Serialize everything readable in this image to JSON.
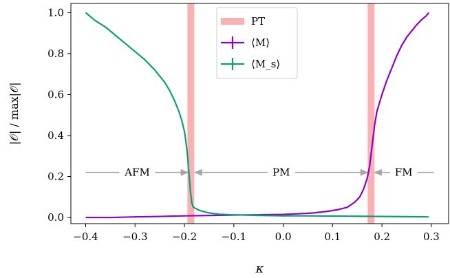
{
  "chart_data": {
    "type": "line",
    "xlabel": "κ",
    "ylabel": "|𝒪| / max|𝒪|",
    "xlim": [
      -0.43,
      0.335
    ],
    "ylim": [
      -0.03,
      1.045
    ],
    "xticks": [
      -0.4,
      -0.3,
      -0.2,
      -0.1,
      0.0,
      0.1,
      0.2,
      0.3
    ],
    "xtick_labels": [
      "−0.4",
      "−0.3",
      "−0.2",
      "−0.1",
      "0.0",
      "0.1",
      "0.2",
      "0.3"
    ],
    "yticks": [
      0.0,
      0.2,
      0.4,
      0.6,
      0.8,
      1.0
    ],
    "ytick_labels": [
      "0.0",
      "0.2",
      "0.4",
      "0.6",
      "0.8",
      "1.0"
    ],
    "grid": false,
    "legend_position": "top-center",
    "phase_transitions": {
      "name": "PT",
      "color": "#f9b1b1",
      "x": [
        -0.187,
        0.178
      ]
    },
    "series": [
      {
        "name": "⟨M⟩",
        "color": "#8f00cc",
        "x": [
          -0.4,
          -0.35,
          -0.3,
          -0.25,
          -0.2,
          -0.15,
          -0.1,
          -0.05,
          0.0,
          0.03,
          0.06,
          0.09,
          0.11,
          0.13,
          0.145,
          0.155,
          0.163,
          0.17,
          0.175,
          0.18,
          0.185,
          0.19,
          0.2,
          0.21,
          0.22,
          0.23,
          0.24,
          0.25,
          0.26,
          0.27,
          0.28,
          0.29,
          0.295
        ],
        "y": [
          0.0,
          0.0,
          0.003,
          0.005,
          0.008,
          0.01,
          0.012,
          0.013,
          0.015,
          0.018,
          0.022,
          0.03,
          0.038,
          0.05,
          0.075,
          0.1,
          0.14,
          0.19,
          0.25,
          0.35,
          0.45,
          0.52,
          0.6,
          0.67,
          0.73,
          0.79,
          0.84,
          0.88,
          0.91,
          0.94,
          0.965,
          0.985,
          1.0
        ]
      },
      {
        "name": "⟨M_s⟩",
        "color": "#0a9e73",
        "x": [
          -0.4,
          -0.38,
          -0.36,
          -0.34,
          -0.32,
          -0.3,
          -0.28,
          -0.26,
          -0.24,
          -0.23,
          -0.22,
          -0.21,
          -0.205,
          -0.2,
          -0.197,
          -0.194,
          -0.191,
          -0.188,
          -0.185,
          -0.182,
          -0.178,
          -0.17,
          -0.16,
          -0.15,
          -0.13,
          -0.1,
          -0.05,
          0.0,
          0.05,
          0.1,
          0.15,
          0.2,
          0.25,
          0.295
        ],
        "y": [
          1.0,
          0.96,
          0.93,
          0.89,
          0.85,
          0.81,
          0.77,
          0.72,
          0.66,
          0.62,
          0.57,
          0.51,
          0.47,
          0.42,
          0.37,
          0.31,
          0.22,
          0.13,
          0.07,
          0.05,
          0.045,
          0.035,
          0.028,
          0.022,
          0.016,
          0.013,
          0.01,
          0.008,
          0.008,
          0.007,
          0.006,
          0.005,
          0.004,
          0.003
        ]
      }
    ],
    "regions": [
      {
        "label": "AFM",
        "x_start": -0.4,
        "x_end": -0.191
      },
      {
        "label": "PM",
        "x_start": -0.181,
        "x_end": 0.173
      },
      {
        "label": "FM",
        "x_start": 0.183,
        "x_end": 0.305
      }
    ],
    "region_arrow_y": 0.22,
    "region_arrow_color": "#a6a6a6"
  }
}
